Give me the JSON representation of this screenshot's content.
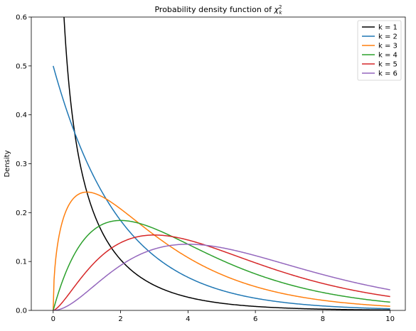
{
  "chart_data": {
    "type": "line",
    "title": {
      "prefix": "Probability density function of ",
      "symbol": "χ",
      "superscript": "2",
      "subscript": "k"
    },
    "xlabel": "",
    "ylabel": "Density",
    "xlim": [
      -0.65,
      10.45
    ],
    "ylim": [
      0,
      0.6
    ],
    "xticks": [
      0,
      2,
      4,
      6,
      8,
      10
    ],
    "yticks": [
      0.0,
      0.1,
      0.2,
      0.3,
      0.4,
      0.5,
      0.6
    ],
    "grid": false,
    "legend_position": "top-right",
    "x_range": [
      0,
      10
    ],
    "series": [
      {
        "name": "k = 1",
        "k": 1,
        "color": "#000000"
      },
      {
        "name": "k = 2",
        "k": 2,
        "color": "#1f77b4"
      },
      {
        "name": "k = 3",
        "k": 3,
        "color": "#ff7f0e"
      },
      {
        "name": "k = 4",
        "k": 4,
        "color": "#2ca02c"
      },
      {
        "name": "k = 5",
        "k": 5,
        "color": "#d62728"
      },
      {
        "name": "k = 6",
        "k": 6,
        "color": "#9467bd"
      }
    ]
  }
}
